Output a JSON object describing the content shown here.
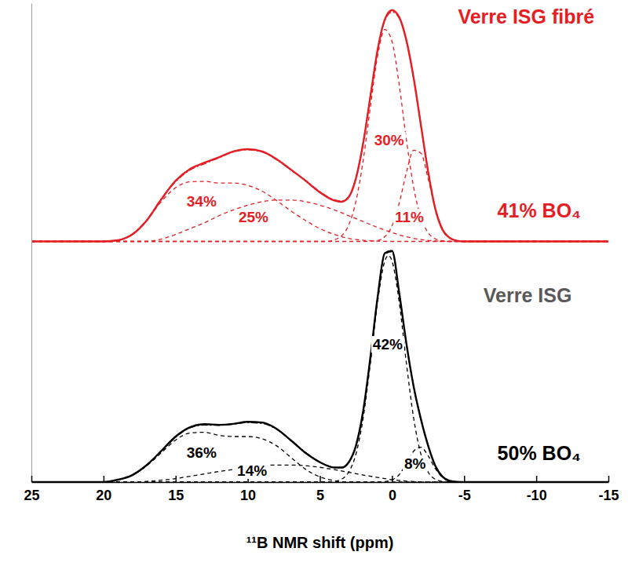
{
  "chart_data": {
    "type": "line",
    "x_label": "¹¹B NMR shift (ppm)",
    "xlim": [
      25,
      -15
    ],
    "xticks": [
      25,
      20,
      15,
      10,
      5,
      0,
      -5,
      -10,
      -15
    ],
    "ylim": [
      0,
      205
    ],
    "tick_labels": "x",
    "series": [
      {
        "color": "#e41e24",
        "line_style": "dashed",
        "x": [
          22,
          20,
          19,
          18,
          17,
          16,
          15,
          14,
          13,
          12,
          11,
          10,
          9,
          8,
          7,
          6,
          5,
          4,
          3,
          2,
          1,
          0,
          -15
        ],
        "values": [
          103,
          103,
          103.5,
          106,
          112,
          120,
          126,
          128.5,
          128.7,
          128,
          128,
          127,
          124.5,
          120.5,
          116,
          112,
          108.5,
          106,
          104.3,
          103.5,
          103.1,
          103,
          103
        ],
        "label": {
          "text": "34%",
          "x": 13.2,
          "y": 118
        }
      },
      {
        "color": "#e41e24",
        "line_style": "dashed",
        "x": [
          25,
          17,
          16,
          15,
          14,
          13,
          12,
          11,
          10,
          9,
          8,
          7,
          6,
          5,
          4,
          3,
          2,
          1,
          0,
          -1,
          -2,
          -3,
          -4,
          -15
        ],
        "values": [
          103,
          103,
          104,
          106,
          108.5,
          111,
          114,
          116.5,
          118.5,
          120,
          120.7,
          120.7,
          120,
          118.5,
          116.5,
          114,
          111.5,
          109,
          106.8,
          105,
          103.8,
          103.2,
          103,
          103
        ],
        "label": {
          "text": "25%",
          "x": 9.6,
          "y": 111.2
        }
      },
      {
        "color": "#e41e24",
        "line_style": "dashed",
        "x": [
          25,
          4.5,
          4,
          3.5,
          3,
          2.5,
          2,
          1.5,
          1,
          0.5,
          0,
          -0.5,
          -1,
          -1.5,
          -2,
          -2.5,
          -3,
          -3.5,
          -4,
          -15
        ],
        "values": [
          103,
          103,
          103.7,
          105.4,
          110.1,
          120.2,
          137.6,
          160.6,
          182.4,
          193.7,
          188.6,
          170,
          146.4,
          126.2,
          113.3,
          106.8,
          104.1,
          103.3,
          103,
          103
        ],
        "label": {
          "text": "30%",
          "x": 0.2,
          "y": 144.2
        }
      },
      {
        "color": "#e41e24",
        "line_style": "dashed",
        "x": [
          25,
          2,
          1.5,
          1,
          0.5,
          0,
          -0.5,
          -1,
          -1.5,
          -2,
          -2.5,
          -3,
          -3.5,
          -4,
          -4.5,
          -5,
          -15
        ],
        "values": [
          103,
          103,
          103.1,
          103.4,
          105,
          109.7,
          119.4,
          132.6,
          142,
          140.8,
          130,
          117.1,
          108.4,
          104.5,
          103.3,
          103,
          103
        ],
        "label": {
          "text": "11%",
          "x": -1.2,
          "y": 111.2
        }
      },
      {
        "color": "#e41e24",
        "line_style": "dashdot",
        "x": [
          25,
          22,
          21,
          20,
          19,
          18,
          17,
          16,
          15,
          14,
          13,
          12,
          11,
          10,
          9,
          8,
          7,
          6,
          5,
          4,
          3.5,
          3,
          2.5,
          2,
          1.5,
          1,
          0.5,
          0,
          -0.5,
          -1,
          -1.5,
          -2,
          -2.5,
          -3,
          -3.5,
          -4,
          -4.5,
          -5,
          -6,
          -8,
          -15
        ],
        "values": [
          103,
          103,
          103,
          103,
          103.4,
          106.2,
          112.3,
          121.2,
          128.6,
          133.6,
          136.2,
          138.8,
          141.3,
          142.2,
          141.3,
          138,
          133.5,
          129.2,
          124.3,
          120.8,
          120.3,
          122.2,
          130.4,
          145.3,
          165.2,
          184.6,
          197.5,
          201.2,
          198.6,
          188.6,
          172.6,
          152.8,
          133.2,
          117.3,
          108.2,
          104.6,
          103.3,
          103,
          103,
          103,
          103
        ]
      },
      {
        "color": "#e41e24",
        "line_style": "solid",
        "x": [
          25,
          22,
          21,
          20,
          19,
          18,
          17,
          16,
          15,
          14,
          13,
          12,
          11,
          10,
          9,
          8,
          7,
          6,
          5,
          4,
          3.5,
          3,
          2.5,
          2,
          1.5,
          1,
          0.5,
          0,
          -0.5,
          -1,
          -1.5,
          -2,
          -2.5,
          -3,
          -3.5,
          -4,
          -4.5,
          -5,
          -6,
          -8,
          -15
        ],
        "values": [
          103,
          103,
          103,
          103,
          103.5,
          106,
          112,
          121,
          129,
          134,
          136.7,
          139,
          141.5,
          142.5,
          141.5,
          138.2,
          133.7,
          129,
          124,
          120.5,
          120,
          122,
          130,
          145,
          165,
          185,
          198,
          202,
          199,
          189,
          173,
          153,
          133,
          117,
          108,
          104.5,
          103.3,
          103,
          103,
          103,
          103
        ]
      },
      {
        "color": "#000000",
        "line_style": "dashed",
        "x": [
          25,
          20,
          19,
          18,
          17,
          16,
          15,
          14,
          13,
          12,
          11,
          10,
          9,
          8,
          7,
          6,
          5,
          4,
          3,
          -15
        ],
        "values": [
          0,
          0,
          1,
          3,
          7,
          12.5,
          18,
          21,
          21.3,
          20,
          19.5,
          19.5,
          18.5,
          15.5,
          10.5,
          5.5,
          2.2,
          0.6,
          0,
          0
        ],
        "label": {
          "text": "36%",
          "x": 13.2,
          "y": 10.4
        }
      },
      {
        "color": "#000000",
        "line_style": "dashed",
        "x": [
          25,
          18,
          17,
          16,
          15,
          14,
          13,
          12,
          11,
          10,
          9,
          8,
          7,
          6,
          5,
          4,
          3,
          2,
          1,
          0,
          -1,
          -2,
          -3,
          -15
        ],
        "values": [
          0,
          0,
          0.3,
          0.8,
          1.5,
          2.5,
          3.5,
          4.5,
          5.4,
          6.3,
          7,
          7.3,
          7.3,
          7,
          6.3,
          5.3,
          4.2,
          3,
          2,
          1,
          0.4,
          0.1,
          0,
          0
        ],
        "label": {
          "text": "14%",
          "x": 9.7,
          "y": 2.7
        }
      },
      {
        "color": "#000000",
        "line_style": "dashed",
        "x": [
          25,
          4.5,
          4,
          3.5,
          3,
          2.5,
          2,
          1.5,
          1,
          0.5,
          0.25,
          0,
          -0.5,
          -1,
          -1.5,
          -2,
          -2.5,
          -3,
          -3.5,
          -4,
          -15
        ],
        "values": [
          0,
          0,
          0.3,
          1.2,
          4.3,
          12,
          27.4,
          50.8,
          77,
          94.6,
          97,
          94.6,
          77,
          50.8,
          27.4,
          12,
          4.3,
          1.2,
          0.3,
          0,
          0
        ],
        "label": {
          "text": "42%",
          "x": 0.3,
          "y": 56.8
        }
      },
      {
        "color": "#000000",
        "line_style": "dashed",
        "x": [
          25,
          1,
          0.5,
          0,
          -0.5,
          -1,
          -1.5,
          -2,
          -2.5,
          -3,
          -3.5,
          -4,
          -4.5,
          -5,
          -15
        ],
        "values": [
          0,
          0,
          0.2,
          0.9,
          3.2,
          8,
          13.2,
          14.9,
          11.3,
          5.8,
          2,
          0.5,
          0.1,
          0,
          0
        ],
        "label": {
          "text": "8%",
          "x": -1.6,
          "y": 5.7
        }
      },
      {
        "color": "#000000",
        "line_style": "dashdot",
        "x": [
          25,
          22,
          21,
          20,
          19,
          18,
          17,
          16,
          15,
          14,
          13,
          12,
          11,
          10,
          9,
          8,
          7,
          6,
          5,
          4,
          3.5,
          3,
          2.5,
          2,
          1.5,
          1,
          0.5,
          0,
          -0.5,
          -1,
          -1.5,
          -2,
          -2.5,
          -3,
          -3.5,
          -4,
          -4.5,
          -5,
          -6,
          -8,
          -15
        ],
        "values": [
          0,
          0,
          0,
          0,
          0.9,
          3.1,
          7.4,
          13.1,
          19.2,
          23.2,
          24.4,
          24.3,
          24.8,
          25.5,
          25.1,
          22.6,
          17.9,
          12.7,
          8.6,
          6.3,
          6.2,
          8.4,
          15.4,
          30.1,
          53,
          78.6,
          97.6,
          98.6,
          80.6,
          59,
          40.8,
          27.1,
          15.8,
          7.1,
          2.4,
          0.6,
          0.1,
          0,
          0,
          0,
          0
        ]
      },
      {
        "color": "#000000",
        "line_style": "solid",
        "x": [
          25,
          22,
          21,
          20,
          19,
          18,
          17,
          16,
          15,
          14,
          13,
          12,
          11,
          10,
          9,
          8,
          7,
          6,
          5,
          4,
          3.5,
          3,
          2.5,
          2,
          1.5,
          1,
          0.5,
          0,
          -0.5,
          -1,
          -1.5,
          -2,
          -2.5,
          -3,
          -3.5,
          -4,
          -4.5,
          -5,
          -6,
          -8,
          -15
        ],
        "values": [
          0,
          0,
          0,
          0,
          1,
          3,
          7.3,
          13.3,
          19.5,
          23.5,
          24.8,
          24.5,
          24.9,
          25.8,
          25.5,
          22.8,
          17.8,
          12.5,
          8.5,
          6.2,
          6.2,
          8.5,
          15.6,
          30.4,
          53.3,
          79,
          98,
          99,
          80.9,
          59.2,
          40.9,
          27,
          15.7,
          7,
          2.3,
          0.5,
          0.1,
          0,
          0,
          0,
          0
        ]
      }
    ],
    "annotations": [
      {
        "text": "Verre ISG fibré",
        "x": -9.3,
        "y": 196.2,
        "color": "#e41e24"
      },
      {
        "text": "41% BO₄",
        "x": -10.2,
        "y": 113.2,
        "color": "#e41e24"
      },
      {
        "text": "Verre ISG",
        "x": -9.4,
        "y": 77,
        "color": "#595959"
      },
      {
        "text": "50% BO₄",
        "x": -10.2,
        "y": 9.4,
        "color": "#000000"
      }
    ]
  }
}
